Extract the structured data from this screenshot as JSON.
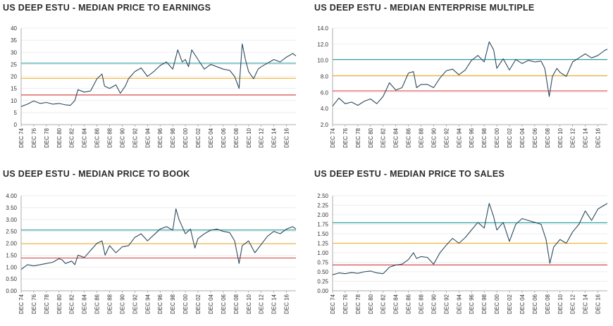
{
  "colors": {
    "line": "#2c4a5e",
    "hi": "#3aa3a5",
    "mid": "#f0b53c",
    "lo": "#d9494b",
    "grid": "#e6e6e6",
    "axis": "#9a9a9a"
  },
  "x_tick_labels": [
    "DEC 74",
    "DEC 76",
    "DEC 78",
    "DEC 80",
    "DEC 82",
    "DEC 84",
    "DEC 86",
    "DEC 88",
    "DEC 90",
    "DEC 92",
    "DEC 94",
    "DEC 96",
    "DEC 98",
    "DEC 00",
    "DEC 02",
    "DEC 04",
    "DEC 06",
    "DEC 08",
    "DEC 10",
    "DEC 12",
    "DEC 14",
    "DEC 16"
  ],
  "chart_data": [
    {
      "type": "line",
      "title": "US DEEP ESTU - MEDIAN PRICE TO EARNINGS",
      "ylim": [
        0,
        40
      ],
      "yticks": [
        "0",
        "5",
        "10",
        "15",
        "20",
        "25",
        "30",
        "35",
        "40"
      ],
      "ytick_values": [
        0,
        5,
        10,
        15,
        20,
        25,
        30,
        35,
        40
      ],
      "reference_lines": [
        25.5,
        19.2,
        12.3
      ],
      "x": [
        1974,
        1975,
        1976,
        1977,
        1978,
        1979,
        1980,
        1981,
        1981.8,
        1982.5,
        1983,
        1984,
        1985,
        1986,
        1986.8,
        1987.2,
        1988,
        1989,
        1989.7,
        1990.5,
        1991,
        1992,
        1993,
        1994,
        1995,
        1996,
        1997,
        1998,
        1998.8,
        1999.5,
        2000,
        2000.5,
        2001,
        2002,
        2003,
        2004,
        2005,
        2006,
        2007,
        2007.8,
        2008.5,
        2009,
        2009.5,
        2010,
        2010.8,
        2011.5,
        2012,
        2013,
        2014,
        2015,
        2016,
        2017,
        2017.5
      ],
      "y": [
        7.5,
        8.5,
        9.8,
        8.8,
        9.2,
        8.5,
        8.8,
        8.2,
        8,
        10,
        14.5,
        13.5,
        14,
        19,
        21,
        16,
        15,
        16.5,
        13,
        16,
        19,
        22,
        23.5,
        20,
        22,
        24.5,
        26,
        23,
        31,
        26,
        27,
        24,
        31,
        27,
        23,
        25,
        24,
        23,
        22.5,
        20,
        15,
        33.5,
        27,
        22,
        19,
        23,
        24,
        25.5,
        27,
        26,
        28,
        29.5,
        28.5
      ]
    },
    {
      "type": "line",
      "title": "US DEEP ESTU - MEDIAN ENTERPRISE MULTIPLE",
      "ylim": [
        2.0,
        14.0
      ],
      "yticks": [
        "2.0",
        "4.0",
        "6.0",
        "8.0",
        "10.0",
        "12.0",
        "14.0"
      ],
      "ytick_values": [
        2,
        4,
        6,
        8,
        10,
        12,
        14
      ],
      "reference_lines": [
        10.1,
        8.1,
        6.2
      ],
      "x": [
        1974,
        1975,
        1976,
        1977,
        1978,
        1979,
        1980,
        1981,
        1982,
        1983,
        1984,
        1985,
        1986,
        1986.8,
        1987.3,
        1988,
        1989,
        1990,
        1991,
        1992,
        1993,
        1994,
        1995,
        1996,
        1997,
        1998,
        1998.8,
        1999.5,
        2000,
        2001,
        2002,
        2003,
        2004,
        2005,
        2006,
        2007,
        2007.6,
        2008.3,
        2008.8,
        2009.5,
        2010,
        2011,
        2012,
        2013,
        2014,
        2015,
        2016,
        2017,
        2017.5
      ],
      "y": [
        4.3,
        5.3,
        4.6,
        4.8,
        4.4,
        4.9,
        5.2,
        4.6,
        5.5,
        7.2,
        6.3,
        6.6,
        8.4,
        8.6,
        6.6,
        7.0,
        7.0,
        6.6,
        7.8,
        8.7,
        8.9,
        8.2,
        8.8,
        10.0,
        10.6,
        9.8,
        12.3,
        11.3,
        9.0,
        10.2,
        8.8,
        10.1,
        9.6,
        10.0,
        9.8,
        9.9,
        9.0,
        5.5,
        8.0,
        9.0,
        8.5,
        8.0,
        9.8,
        10.3,
        10.8,
        10.3,
        10.6,
        11.2,
        11.4
      ]
    },
    {
      "type": "line",
      "title": "US DEEP ESTU - MEDIAN PRICE TO BOOK",
      "ylim": [
        0,
        4.0
      ],
      "yticks": [
        "0.00",
        "0.50",
        "1.00",
        "1.50",
        "2.00",
        "2.50",
        "3.00",
        "3.50",
        "4.00"
      ],
      "ytick_values": [
        0,
        0.5,
        1,
        1.5,
        2,
        2.5,
        3,
        3.5,
        4
      ],
      "reference_lines": [
        2.56,
        1.98,
        1.38
      ],
      "x": [
        1974,
        1975,
        1976,
        1977,
        1978,
        1979,
        1980,
        1980.5,
        1981,
        1982,
        1982.5,
        1983,
        1984,
        1985,
        1986,
        1986.8,
        1987.3,
        1988,
        1989,
        1990,
        1991,
        1992,
        1993,
        1994,
        1995,
        1996,
        1997,
        1998,
        1998.5,
        1999,
        2000,
        2000.8,
        2001.5,
        2002,
        2003,
        2004,
        2005,
        2006,
        2007,
        2007.8,
        2008.5,
        2009,
        2010,
        2011,
        2012,
        2013,
        2014,
        2015,
        2016,
        2017,
        2017.5
      ],
      "y": [
        0.9,
        1.1,
        1.05,
        1.1,
        1.15,
        1.2,
        1.35,
        1.3,
        1.15,
        1.25,
        1.1,
        1.5,
        1.4,
        1.7,
        2.0,
        2.1,
        1.5,
        1.9,
        1.6,
        1.85,
        1.9,
        2.25,
        2.4,
        2.1,
        2.35,
        2.6,
        2.7,
        2.55,
        3.45,
        3.0,
        2.4,
        2.6,
        1.8,
        2.2,
        2.4,
        2.55,
        2.6,
        2.5,
        2.45,
        2.1,
        1.15,
        1.9,
        2.1,
        1.6,
        1.95,
        2.3,
        2.5,
        2.4,
        2.6,
        2.7,
        2.6
      ]
    },
    {
      "type": "line",
      "title": "US DEEP ESTU - MEDIAN PRICE TO SALES",
      "ylim": [
        0,
        2.5
      ],
      "yticks": [
        "0.00",
        "0.25",
        "0.50",
        "0.75",
        "1.00",
        "1.25",
        "1.50",
        "1.75",
        "2.00",
        "2.25",
        "2.50"
      ],
      "ytick_values": [
        0,
        0.25,
        0.5,
        0.75,
        1,
        1.25,
        1.5,
        1.75,
        2,
        2.25,
        2.5
      ],
      "reference_lines": [
        1.79,
        1.25,
        0.68
      ],
      "x": [
        1974,
        1975,
        1976,
        1977,
        1978,
        1979,
        1980,
        1981,
        1982,
        1983,
        1984,
        1985,
        1986,
        1986.8,
        1987.3,
        1988,
        1989,
        1990,
        1991,
        1992,
        1993,
        1994,
        1995,
        1996,
        1997,
        1998,
        1998.8,
        1999.5,
        2000,
        2001,
        2002,
        2003,
        2004,
        2005,
        2006,
        2007,
        2007.8,
        2008.4,
        2009,
        2010,
        2011,
        2012,
        2013,
        2014,
        2015,
        2016,
        2017,
        2017.5
      ],
      "y": [
        0.42,
        0.47,
        0.45,
        0.48,
        0.46,
        0.5,
        0.52,
        0.47,
        0.45,
        0.62,
        0.68,
        0.7,
        0.82,
        1.0,
        0.85,
        0.9,
        0.88,
        0.7,
        1.0,
        1.2,
        1.38,
        1.25,
        1.4,
        1.6,
        1.8,
        1.65,
        2.3,
        1.95,
        1.6,
        1.8,
        1.3,
        1.75,
        1.9,
        1.85,
        1.8,
        1.75,
        1.35,
        0.72,
        1.15,
        1.35,
        1.25,
        1.55,
        1.75,
        2.1,
        1.85,
        2.15,
        2.25,
        2.3
      ]
    }
  ]
}
